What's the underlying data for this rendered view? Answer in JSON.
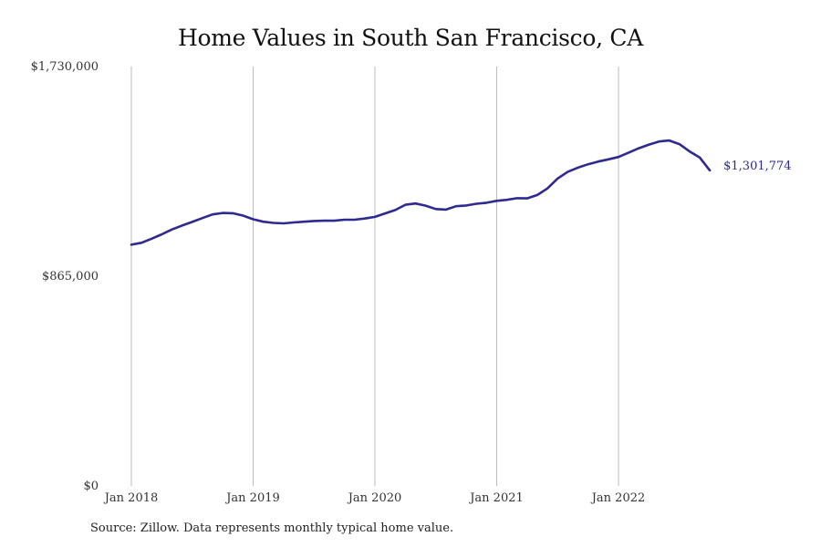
{
  "chart_data": {
    "type": "line",
    "title": "Home Values in South San Francisco, CA",
    "xlabel": "",
    "ylabel": "",
    "ylim": [
      0,
      1730000
    ],
    "y_ticks": [
      "$0",
      "$865,000",
      "$1,730,000"
    ],
    "x_ticks": [
      "Jan 2018",
      "Jan 2019",
      "Jan 2020",
      "Jan 2021",
      "Jan 2022"
    ],
    "grid": "vertical",
    "line_color": "#2e2a8f",
    "end_value_label": "$1,301,774",
    "series": [
      {
        "x": [
          "2018-01",
          "2018-02",
          "2018-03",
          "2018-04",
          "2018-05",
          "2018-06",
          "2018-07",
          "2018-08",
          "2018-09",
          "2018-10",
          "2018-11",
          "2018-12",
          "2019-01",
          "2019-02",
          "2019-03",
          "2019-04",
          "2019-05",
          "2019-06",
          "2019-07",
          "2019-08",
          "2019-09",
          "2019-10",
          "2019-11",
          "2019-12",
          "2020-01",
          "2020-02",
          "2020-03",
          "2020-04",
          "2020-05",
          "2020-06",
          "2020-07",
          "2020-08",
          "2020-09",
          "2020-10",
          "2020-11",
          "2020-12",
          "2021-01",
          "2021-02",
          "2021-03",
          "2021-04",
          "2021-05",
          "2021-06",
          "2021-07",
          "2021-08",
          "2021-09",
          "2021-10",
          "2021-11",
          "2021-12",
          "2022-01",
          "2022-02",
          "2022-03",
          "2022-04",
          "2022-05",
          "2022-06",
          "2022-07",
          "2022-08",
          "2022-09",
          "2022-10"
        ],
        "values": [
          995000,
          1003000,
          1020000,
          1038000,
          1058000,
          1074000,
          1089000,
          1105000,
          1120000,
          1126000,
          1125000,
          1115000,
          1100000,
          1090000,
          1085000,
          1083000,
          1087000,
          1090000,
          1093000,
          1094000,
          1094000,
          1098000,
          1098000,
          1103000,
          1110000,
          1124000,
          1138000,
          1160000,
          1165000,
          1156000,
          1142000,
          1140000,
          1154000,
          1157000,
          1164000,
          1168000,
          1176000,
          1180000,
          1187000,
          1186000,
          1200000,
          1227000,
          1268000,
          1296000,
          1313000,
          1327000,
          1338000,
          1347000,
          1357000,
          1375000,
          1393000,
          1408000,
          1421000,
          1425000,
          1410000,
          1380000,
          1355000,
          1301774
        ]
      }
    ]
  },
  "source_note": "Source: Zillow. Data represents monthly typical home value."
}
